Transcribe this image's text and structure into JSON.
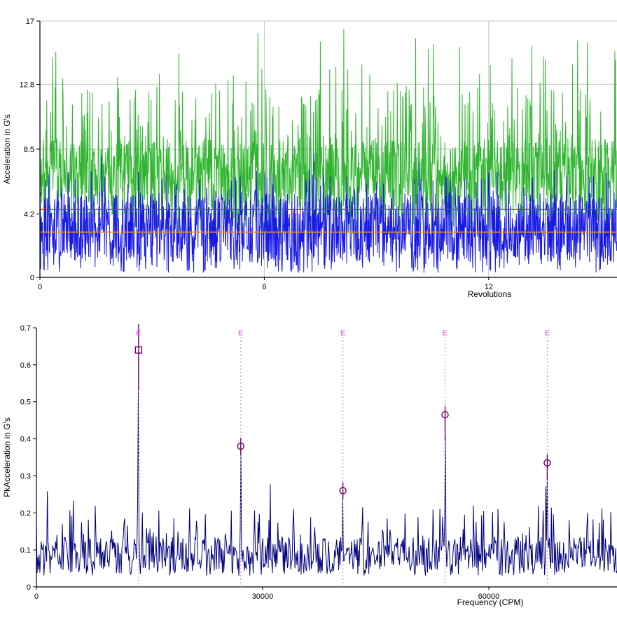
{
  "page": {
    "background": "#FFFFFF"
  },
  "colors": {
    "axis": "#000000",
    "grid": "#C6C6C6",
    "text": "#000000"
  },
  "chart_data": [
    {
      "type": "line",
      "name": "time-waveform",
      "title": "",
      "xlabel": "Revolutions",
      "ylabel": "Acceleration in G's",
      "xlim": [
        0,
        15.43
      ],
      "ylim": [
        0,
        17
      ],
      "grid_on": true,
      "xticks": [
        {
          "v": 0,
          "label": "0"
        },
        {
          "v": 6,
          "label": "6"
        },
        {
          "v": 12,
          "label": "12"
        }
      ],
      "yticks": [
        {
          "v": 0,
          "label": "0"
        },
        {
          "v": 4.2,
          "label": "4.2"
        },
        {
          "v": 8.5,
          "label": "8.5"
        },
        {
          "v": 12.8,
          "label": "12.8"
        },
        {
          "v": 17,
          "label": "17"
        }
      ],
      "grid": {
        "horizontal": [
          4.2,
          8.5,
          12.8,
          17
        ],
        "vertical": [
          6,
          12
        ],
        "color": "#C6C6C6"
      },
      "series": [
        {
          "name": "waveform-series-green",
          "color": "#2FB52F",
          "description": "dense noisy waveform, core band 4.2-9.2 G, frequent bursts to 9-12.5 G, rare peaks 12.5-16.5 G",
          "gen": {
            "seed": 7,
            "n": 1600,
            "lo": 4.2,
            "hi": 9.2,
            "dip_prob": 0.05,
            "dip_lo": 2.6,
            "dip_hi": 4.2,
            "spike_prob": 0.1,
            "spike_lo": 9.2,
            "spike_hi": 12.5,
            "rare_prob": 0.018,
            "rare_lo": 12.5,
            "rare_hi": 16.5
          }
        },
        {
          "name": "waveform-series-blue",
          "color": "#1A1AE6",
          "description": "dense noisy waveform, core band 1.0-5.6 G, dips to 0.3 G, rare peaks to 8.7 G",
          "gen": {
            "seed": 13,
            "n": 1600,
            "lo": 1.0,
            "hi": 5.6,
            "dip_prob": 0.06,
            "dip_lo": 0.3,
            "dip_hi": 1.0,
            "spike_prob": 0.05,
            "spike_lo": 5.6,
            "spike_hi": 7.2,
            "rare_prob": 0.004,
            "rare_lo": 7.2,
            "rare_hi": 8.75
          }
        }
      ],
      "ref_lines": [
        {
          "name": "red-reference-line",
          "value": 4.5,
          "color": "#E62020"
        },
        {
          "name": "orange-reference-line",
          "value": 3.0,
          "color": "#E8882E"
        }
      ]
    },
    {
      "type": "line",
      "name": "spectrum",
      "title": "",
      "xlabel": "Frequency (CPM)",
      "ylabel": "PkAcceleration in G's",
      "xlim": [
        0,
        77000
      ],
      "ylim": [
        0,
        0.7
      ],
      "grid_on": false,
      "xticks": [
        {
          "v": 0,
          "label": "0"
        },
        {
          "v": 30000,
          "label": "30000"
        },
        {
          "v": 60000,
          "label": "60000"
        }
      ],
      "yticks": [
        {
          "v": 0,
          "label": "0"
        },
        {
          "v": 0.1,
          "label": "0.1"
        },
        {
          "v": 0.2,
          "label": "0.2"
        },
        {
          "v": 0.3,
          "label": "0.3"
        },
        {
          "v": 0.4,
          "label": "0.4"
        },
        {
          "v": 0.5,
          "label": "0.5"
        },
        {
          "v": 0.6,
          "label": "0.6"
        },
        {
          "v": 0.7,
          "label": "0.7"
        }
      ],
      "series": [
        {
          "name": "spectrum-series",
          "color": "#00007E",
          "description": "noise floor ~0.03-0.14 G pk with bursts to 0.22 and rare 0.30, harmonic peaks at E markers",
          "gen": {
            "seed": 3,
            "n": 850,
            "lo": 0.03,
            "hi": 0.135,
            "dip_prob": 0.0,
            "dip_lo": 0.03,
            "dip_hi": 0.03,
            "spike_prob": 0.1,
            "spike_lo": 0.135,
            "spike_hi": 0.22,
            "rare_prob": 0.01,
            "rare_lo": 0.22,
            "rare_hi": 0.3
          },
          "peaks": [
            {
              "x": 13550,
              "y": 0.53
            },
            {
              "x": 27100,
              "y": 0.365
            },
            {
              "x": 40650,
              "y": 0.245
            },
            {
              "x": 54200,
              "y": 0.405
            },
            {
              "x": 67750,
              "y": 0.3
            }
          ]
        }
      ],
      "markers": [
        {
          "label": "E",
          "x": 13550,
          "y": 0.64,
          "peak_y": 0.53,
          "shape": "square",
          "line": "solid"
        },
        {
          "label": "E",
          "x": 27100,
          "y": 0.38,
          "peak_y": 0.365,
          "shape": "circle",
          "line": "dashed"
        },
        {
          "label": "E",
          "x": 40650,
          "y": 0.26,
          "peak_y": 0.245,
          "shape": "circle",
          "line": "dashed"
        },
        {
          "label": "E",
          "x": 54200,
          "y": 0.465,
          "peak_y": 0.405,
          "shape": "circle",
          "line": "dashed"
        },
        {
          "label": "E",
          "x": 67750,
          "y": 0.335,
          "peak_y": 0.3,
          "shape": "circle",
          "line": "dashed"
        }
      ],
      "marker_colors": {
        "line_dashed": "#DD8ADD",
        "line_solid": "#6A006A",
        "shape": "#6A006A",
        "label": "#DD7ADD"
      }
    }
  ]
}
